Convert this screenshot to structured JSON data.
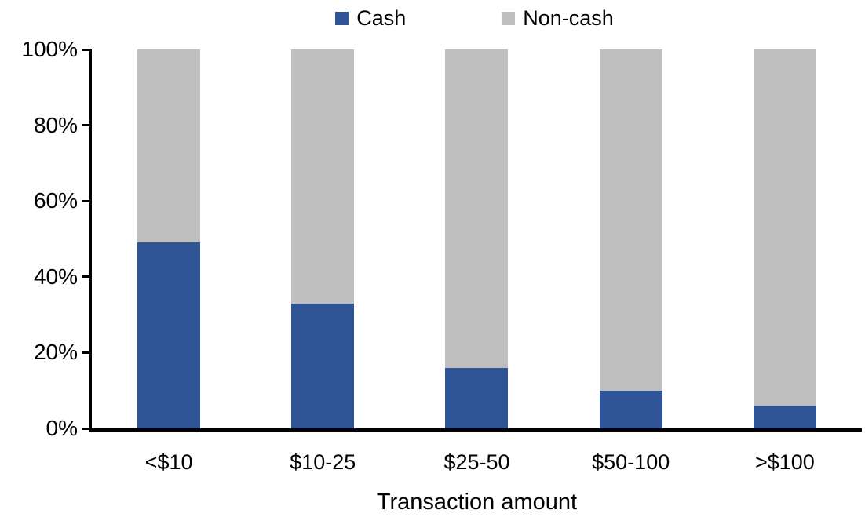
{
  "chart_data": {
    "type": "bar",
    "subtype": "stacked-100-percent",
    "title": "",
    "xlabel": "Transaction amount",
    "ylabel": "",
    "categories": [
      "<$10",
      "$10-25",
      "$25-50",
      "$50-100",
      ">$100"
    ],
    "series": [
      {
        "name": "Cash",
        "color": "#2F5597",
        "values": [
          49,
          33,
          16,
          10,
          6
        ]
      },
      {
        "name": "Non-cash",
        "color": "#BFBFBF",
        "values": [
          51,
          67,
          84,
          90,
          94
        ]
      }
    ],
    "ylim": [
      0,
      100
    ],
    "yticks": [
      {
        "value": 0,
        "label": "0%"
      },
      {
        "value": 20,
        "label": "20%"
      },
      {
        "value": 40,
        "label": "40%"
      },
      {
        "value": 60,
        "label": "60%"
      },
      {
        "value": 80,
        "label": "80%"
      },
      {
        "value": 100,
        "label": "100%"
      }
    ],
    "legend_position": "top-center",
    "grid": false,
    "axis_color": "#000000",
    "background_color": "#FFFFFF"
  }
}
